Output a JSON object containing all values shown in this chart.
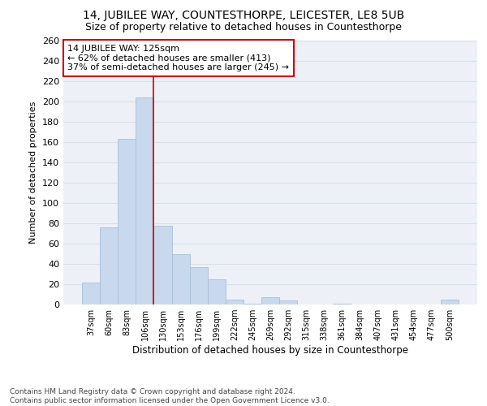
{
  "title": "14, JUBILEE WAY, COUNTESTHORPE, LEICESTER, LE8 5UB",
  "subtitle": "Size of property relative to detached houses in Countesthorpe",
  "xlabel": "Distribution of detached houses by size in Countesthorpe",
  "ylabel": "Number of detached properties",
  "footer_line1": "Contains HM Land Registry data © Crown copyright and database right 2024.",
  "footer_line2": "Contains public sector information licensed under the Open Government Licence v3.0.",
  "categories": [
    "37sqm",
    "60sqm",
    "83sqm",
    "106sqm",
    "130sqm",
    "153sqm",
    "176sqm",
    "199sqm",
    "222sqm",
    "245sqm",
    "269sqm",
    "292sqm",
    "315sqm",
    "338sqm",
    "361sqm",
    "384sqm",
    "407sqm",
    "431sqm",
    "454sqm",
    "477sqm",
    "500sqm"
  ],
  "values": [
    22,
    76,
    163,
    204,
    78,
    50,
    37,
    25,
    5,
    1,
    7,
    4,
    0,
    0,
    1,
    0,
    0,
    0,
    0,
    0,
    5
  ],
  "bar_color": "#c8d8ed",
  "bar_edge_color": "#a8c0d8",
  "grid_color": "#d8dfe8",
  "bg_color": "#edf1f7",
  "annotation_box_color": "#cc0000",
  "annotation_line1": "14 JUBILEE WAY: 125sqm",
  "annotation_line2": "← 62% of detached houses are smaller (413)",
  "annotation_line3": "37% of semi-detached houses are larger (245) →",
  "ref_line_x": 4.0,
  "ylim": [
    0,
    260
  ],
  "yticks": [
    0,
    20,
    40,
    60,
    80,
    100,
    120,
    140,
    160,
    180,
    200,
    220,
    240,
    260
  ],
  "title_fontsize": 10,
  "subtitle_fontsize": 9
}
